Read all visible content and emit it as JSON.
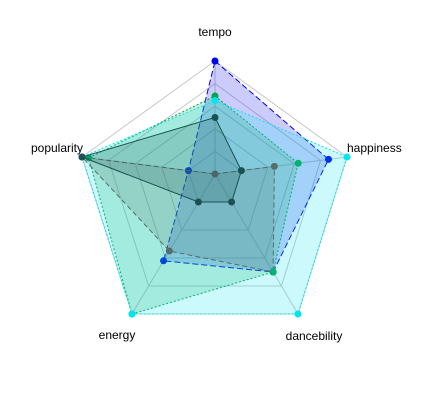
{
  "chart_data": {
    "type": "radar",
    "axes": [
      "tempo",
      "happiness",
      "dancebility",
      "energy",
      "popularity"
    ],
    "range": [
      0,
      1
    ],
    "rings": [
      0.2,
      0.4,
      0.6,
      0.8,
      1.0
    ],
    "series": [
      {
        "color": "#0000ee",
        "values": [
          1.0,
          0.86,
          0.7,
          0.62,
          0.2
        ]
      },
      {
        "color": "#8b3a4a",
        "values": [
          0.0,
          0.45,
          0.7,
          0.55,
          1.0
        ]
      },
      {
        "color": "#00a64a",
        "values": [
          0.69,
          0.63,
          0.7,
          1.0,
          0.95
        ]
      },
      {
        "color": "#00e5ee",
        "values": [
          0.65,
          1.0,
          1.0,
          1.0,
          1.0
        ]
      },
      {
        "color": "#1a5252",
        "values": [
          0.5,
          0.2,
          0.2,
          0.2,
          1.0
        ]
      }
    ]
  }
}
